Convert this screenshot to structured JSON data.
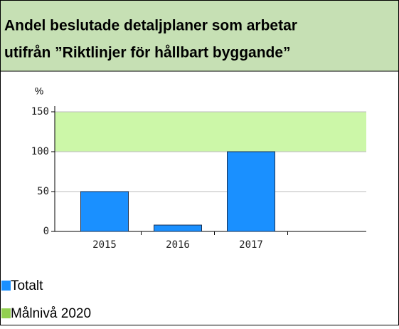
{
  "chart_data": {
    "type": "bar",
    "title": [
      "Andel beslutade detaljplaner som arbetar",
      "utifrån ”Riktlinjer för hållbart byggande”"
    ],
    "ylabel": "%",
    "categories": [
      "2015",
      "2016",
      "2017",
      null
    ],
    "series": [
      {
        "name": "Totalt",
        "color": "#1a90ff",
        "values": [
          50,
          8,
          100,
          null
        ]
      }
    ],
    "bands": [
      {
        "name": "Målnivå 2020",
        "color": "#ccf7a8",
        "legend_color": "#92d050",
        "range": [
          100,
          150
        ]
      }
    ],
    "ylim": [
      0,
      150
    ],
    "yticks": [
      0,
      50,
      100,
      150
    ],
    "grid": true
  }
}
